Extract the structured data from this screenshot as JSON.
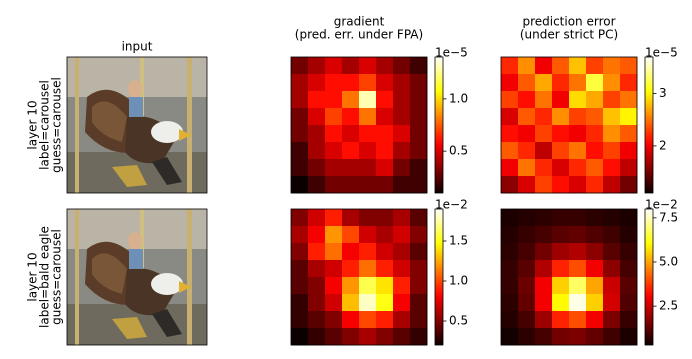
{
  "input": {
    "title": "input"
  },
  "rows": [
    {
      "lines": [
        "layer 10",
        "label=carousel",
        "guess=carousel"
      ]
    },
    {
      "lines": [
        "layer 10",
        "label=bald eagle",
        "guess=carousel"
      ]
    }
  ],
  "chart_data": [
    {
      "type": "heatmap",
      "title": "gradient",
      "subtitle": "(pred. err. under FPA)",
      "cmap": "hot",
      "zlim": [
        0.1,
        1.4
      ],
      "zticks": [
        0.5,
        {
          "value": 1,
          "label": "1.0"
        }
      ],
      "offset_label": "1e−5",
      "z": [
        [
          0.3,
          0.4,
          0.5,
          0.4,
          0.5,
          0.4,
          0.3,
          0.2
        ],
        [
          0.4,
          0.5,
          0.6,
          0.6,
          0.7,
          0.5,
          0.4,
          0.3
        ],
        [
          0.4,
          0.6,
          0.6,
          0.8,
          1.3,
          0.6,
          0.4,
          0.3
        ],
        [
          0.3,
          0.5,
          0.7,
          0.6,
          0.8,
          0.5,
          0.4,
          0.3
        ],
        [
          0.3,
          0.4,
          0.6,
          0.5,
          0.6,
          0.6,
          0.5,
          0.3
        ],
        [
          0.2,
          0.4,
          0.5,
          0.6,
          0.5,
          0.6,
          0.4,
          0.3
        ],
        [
          0.2,
          0.3,
          0.4,
          0.4,
          0.4,
          0.5,
          0.3,
          0.2
        ],
        [
          0.1,
          0.2,
          0.3,
          0.3,
          0.3,
          0.3,
          0.2,
          0.2
        ]
      ]
    },
    {
      "type": "heatmap",
      "title": "prediction error",
      "subtitle": "(under strict PC)",
      "cmap": "hot",
      "zlim": [
        1.1,
        3.7
      ],
      "zticks": [
        2,
        3
      ],
      "offset_label": "1e−5",
      "z": [
        [
          2.2,
          2.6,
          2.0,
          2.4,
          2.8,
          2.3,
          2.5,
          2.4
        ],
        [
          2.0,
          2.4,
          2.7,
          2.2,
          2.5,
          3.2,
          2.6,
          2.2
        ],
        [
          2.3,
          2.1,
          2.5,
          2.0,
          2.9,
          2.7,
          2.3,
          2.5
        ],
        [
          1.9,
          2.4,
          2.2,
          2.6,
          2.3,
          2.4,
          2.8,
          3.0
        ],
        [
          2.1,
          2.0,
          2.3,
          2.1,
          2.0,
          2.2,
          2.6,
          2.4
        ],
        [
          2.4,
          2.2,
          1.8,
          2.3,
          2.5,
          2.1,
          2.3,
          2.0
        ],
        [
          2.0,
          2.5,
          2.2,
          1.9,
          2.2,
          2.4,
          2.1,
          1.8
        ],
        [
          1.6,
          1.9,
          2.3,
          2.1,
          1.9,
          2.2,
          1.8,
          1.5
        ]
      ]
    },
    {
      "type": "heatmap",
      "cmap": "hot",
      "zlim": [
        0.2,
        1.9
      ],
      "zticks": [
        0.5,
        {
          "value": 1,
          "label": "1.0"
        },
        1.5
      ],
      "offset_label": "1e−2",
      "z": [
        [
          0.5,
          0.7,
          0.9,
          0.6,
          0.5,
          0.5,
          0.6,
          0.4
        ],
        [
          0.6,
          0.8,
          1.2,
          1.0,
          0.7,
          0.6,
          0.7,
          0.5
        ],
        [
          0.5,
          0.9,
          1.1,
          0.8,
          0.9,
          0.7,
          0.6,
          0.4
        ],
        [
          0.4,
          0.6,
          0.7,
          0.9,
          1.1,
          0.9,
          0.7,
          0.5
        ],
        [
          0.4,
          0.5,
          0.8,
          1.2,
          1.6,
          1.4,
          0.9,
          0.5
        ],
        [
          0.3,
          0.5,
          0.7,
          1.3,
          1.8,
          1.5,
          0.8,
          0.4
        ],
        [
          0.3,
          0.4,
          0.5,
          0.8,
          1.0,
          0.9,
          0.6,
          0.4
        ],
        [
          0.2,
          0.3,
          0.4,
          0.5,
          0.6,
          0.5,
          0.4,
          0.3
        ]
      ]
    },
    {
      "type": "heatmap",
      "cmap": "hot",
      "zlim": [
        0.3,
        8.0
      ],
      "zticks": [
        2.5,
        {
          "value": 5,
          "label": "5.0"
        },
        7.5
      ],
      "offset_label": "1e−2",
      "z": [
        [
          0.5,
          0.6,
          0.7,
          0.8,
          0.8,
          0.7,
          0.6,
          0.5
        ],
        [
          0.6,
          0.8,
          1.0,
          1.2,
          1.3,
          1.1,
          0.9,
          0.6
        ],
        [
          0.7,
          1.0,
          1.5,
          2.0,
          2.2,
          1.8,
          1.2,
          0.8
        ],
        [
          0.8,
          1.2,
          2.2,
          3.5,
          4.0,
          3.0,
          1.8,
          1.0
        ],
        [
          0.8,
          1.4,
          3.0,
          5.5,
          6.8,
          5.0,
          2.5,
          1.2
        ],
        [
          0.7,
          1.3,
          3.0,
          6.0,
          7.8,
          5.5,
          2.6,
          1.1
        ],
        [
          0.6,
          1.0,
          2.0,
          3.5,
          4.0,
          3.0,
          1.6,
          0.8
        ],
        [
          0.4,
          0.7,
          1.0,
          1.5,
          1.6,
          1.3,
          0.9,
          0.5
        ]
      ]
    }
  ]
}
